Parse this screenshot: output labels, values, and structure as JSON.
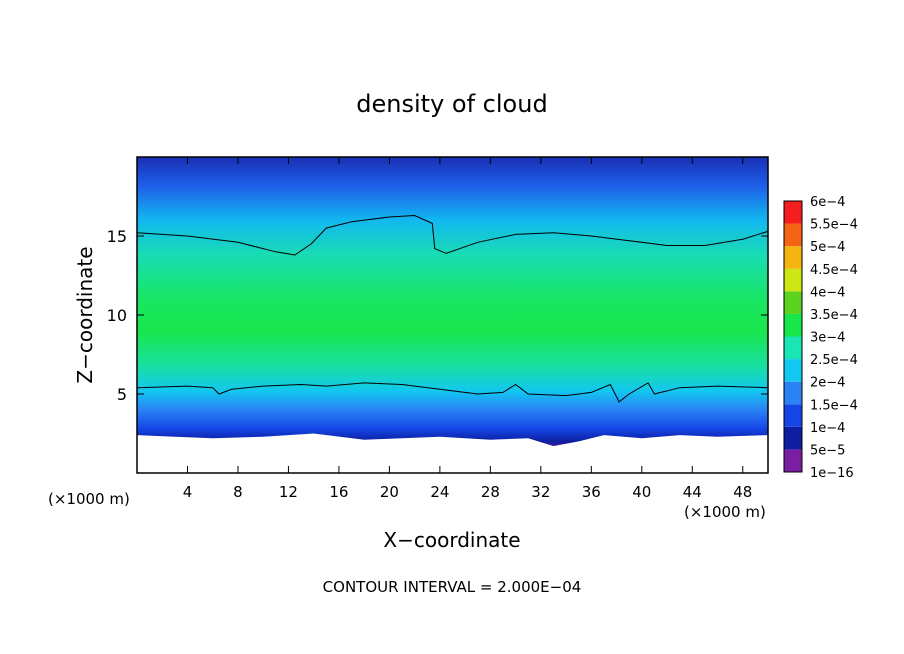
{
  "chart_data": {
    "type": "heatmap",
    "title": "density of cloud",
    "xlabel": "X−coordinate",
    "ylabel": "Z−coordinate",
    "x_unit_left": "(×1000 m)",
    "x_unit_right": "(×1000 m)",
    "footer": "CONTOUR INTERVAL = 2.000E−04",
    "xlim": [
      0,
      50
    ],
    "ylim": [
      0,
      20
    ],
    "xticks": [
      {
        "value": 4,
        "label": "4"
      },
      {
        "value": 8,
        "label": "8"
      },
      {
        "value": 12,
        "label": "12"
      },
      {
        "value": 16,
        "label": "16"
      },
      {
        "value": 20,
        "label": "20"
      },
      {
        "value": 24,
        "label": "24"
      },
      {
        "value": 28,
        "label": "28"
      },
      {
        "value": 32,
        "label": "32"
      },
      {
        "value": 36,
        "label": "36"
      },
      {
        "value": 40,
        "label": "40"
      },
      {
        "value": 44,
        "label": "44"
      },
      {
        "value": 48,
        "label": "48"
      }
    ],
    "yticks": [
      {
        "value": 5,
        "label": "5"
      },
      {
        "value": 10,
        "label": "10"
      },
      {
        "value": 15,
        "label": "15"
      }
    ],
    "colorbar": {
      "levels": [
        {
          "label": "1e−16",
          "color": "#7b1fa2"
        },
        {
          "label": "5e−5",
          "color": "#0d1fa0"
        },
        {
          "label": "1e−4",
          "color": "#1446e6"
        },
        {
          "label": "1.5e−4",
          "color": "#2a82f5"
        },
        {
          "label": "2e−4",
          "color": "#12c8f0"
        },
        {
          "label": "2.5e−4",
          "color": "#19e6b4"
        },
        {
          "label": "3e−4",
          "color": "#19e64b"
        },
        {
          "label": "3.5e−4",
          "color": "#5ad21e"
        },
        {
          "label": "4e−4",
          "color": "#cde614"
        },
        {
          "label": "4.5e−4",
          "color": "#f5b40f"
        },
        {
          "label": "5e−4",
          "color": "#f56414"
        },
        {
          "label": "5.5e−4",
          "color": "#f51e1e"
        },
        {
          "label": "6e−4",
          "color": "#f58c8c"
        }
      ]
    },
    "contour_2e-4": [
      [
        0,
        15.2
      ],
      [
        4,
        15.0
      ],
      [
        8,
        14.6
      ],
      [
        11,
        14.0
      ],
      [
        12.5,
        13.8
      ],
      [
        13.8,
        14.5
      ],
      [
        15,
        15.5
      ],
      [
        17,
        15.9
      ],
      [
        20,
        16.2
      ],
      [
        22,
        16.3
      ],
      [
        23.4,
        15.8
      ],
      [
        23.6,
        14.2
      ],
      [
        24.5,
        13.9
      ],
      [
        27,
        14.6
      ],
      [
        30,
        15.1
      ],
      [
        33,
        15.2
      ],
      [
        36,
        15.0
      ],
      [
        39,
        14.7
      ],
      [
        42,
        14.4
      ],
      [
        45,
        14.4
      ],
      [
        48,
        14.8
      ],
      [
        50,
        15.3
      ]
    ],
    "contour_2e-4_lower": [
      [
        0,
        5.4
      ],
      [
        4,
        5.5
      ],
      [
        6,
        5.4
      ],
      [
        6.5,
        5.0
      ],
      [
        7.5,
        5.3
      ],
      [
        10,
        5.5
      ],
      [
        13,
        5.6
      ],
      [
        15,
        5.5
      ],
      [
        18,
        5.7
      ],
      [
        21,
        5.6
      ],
      [
        24,
        5.3
      ],
      [
        27,
        5.0
      ],
      [
        29,
        5.1
      ],
      [
        30,
        5.6
      ],
      [
        31,
        5.0
      ],
      [
        34,
        4.9
      ],
      [
        36,
        5.1
      ],
      [
        37.5,
        5.6
      ],
      [
        38.2,
        4.5
      ],
      [
        39,
        5.0
      ],
      [
        40.5,
        5.7
      ],
      [
        41,
        5.0
      ],
      [
        43,
        5.4
      ],
      [
        46,
        5.5
      ],
      [
        50,
        5.4
      ]
    ],
    "cloud_base": [
      [
        0,
        2.4
      ],
      [
        3,
        2.3
      ],
      [
        6,
        2.2
      ],
      [
        10,
        2.3
      ],
      [
        14,
        2.5
      ],
      [
        18,
        2.1
      ],
      [
        21,
        2.2
      ],
      [
        24,
        2.3
      ],
      [
        28,
        2.1
      ],
      [
        31,
        2.2
      ],
      [
        33,
        1.7
      ],
      [
        35,
        2.0
      ],
      [
        37,
        2.4
      ],
      [
        40,
        2.2
      ],
      [
        43,
        2.4
      ],
      [
        46,
        2.3
      ],
      [
        50,
        2.4
      ]
    ]
  }
}
